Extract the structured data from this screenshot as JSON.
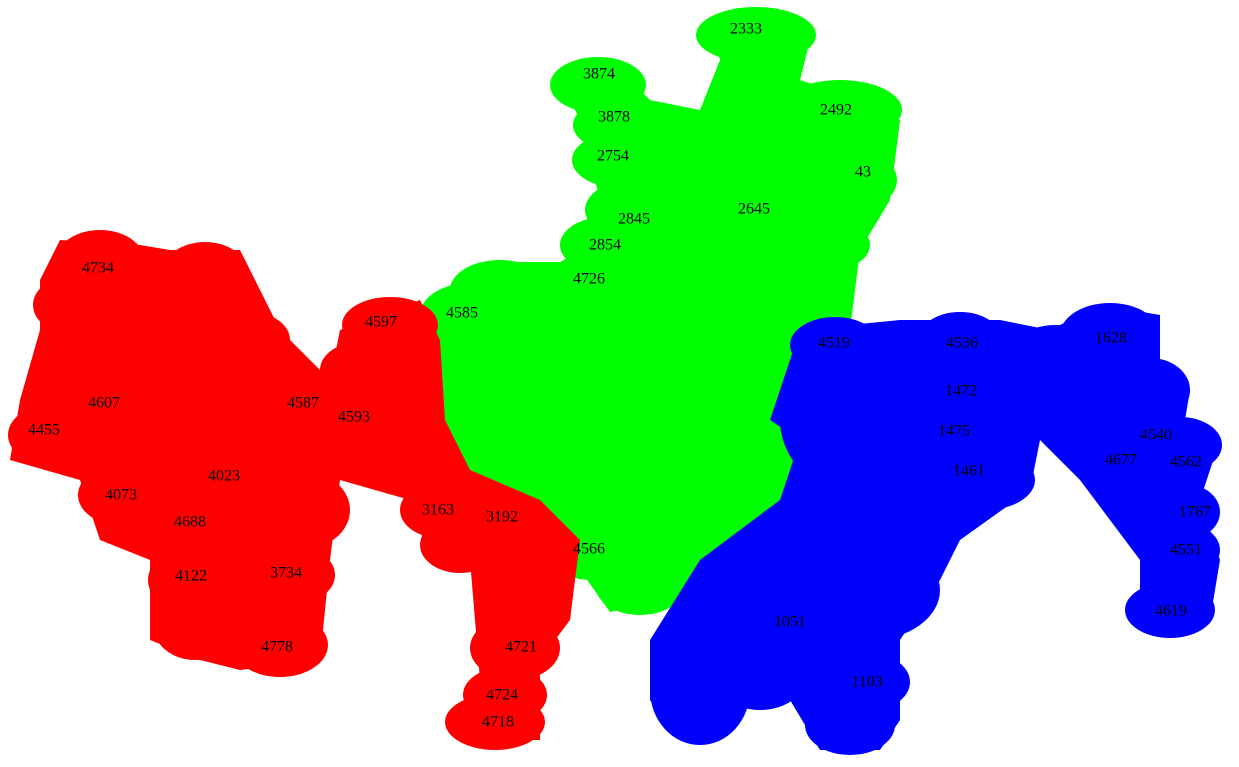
{
  "colors": {
    "red_cluster": "#ff0000",
    "green_cluster": "#00ff00",
    "blue_cluster": "#0000ff",
    "label": "#000000",
    "background": "#ffffff"
  },
  "labels": {
    "green": {
      "n2333": "2333",
      "n3874": "3874",
      "n3878": "3878",
      "n2492": "2492",
      "n2754": "2754",
      "n43": "43",
      "n2845": "2845",
      "n2645": "2645",
      "n2854": "2854",
      "n4726": "4726",
      "n4585": "4585",
      "n4566": "4566"
    },
    "red": {
      "n4734": "4734",
      "n4597": "4597",
      "n4587": "4587",
      "n4593": "4593",
      "n4607": "4607",
      "n4455": "4455",
      "n4023": "4023",
      "n4073": "4073",
      "n3163": "3163",
      "n3192": "3192",
      "n4688": "4688",
      "n4122": "4122",
      "n3734": "3734",
      "n4778": "4778",
      "n4721": "4721",
      "n4724": "4724",
      "n4718": "4718"
    },
    "blue": {
      "n4519": "4519",
      "n4536": "4536",
      "n1628": "1628",
      "n1472": "1472",
      "n1475": "1475",
      "n1461": "1461",
      "n4540": "4540",
      "n4677": "4677",
      "n4562": "4562",
      "n1767": "1767",
      "n4551": "4551",
      "n4619": "4619",
      "n1051": "1051",
      "n1103": "1103"
    }
  }
}
